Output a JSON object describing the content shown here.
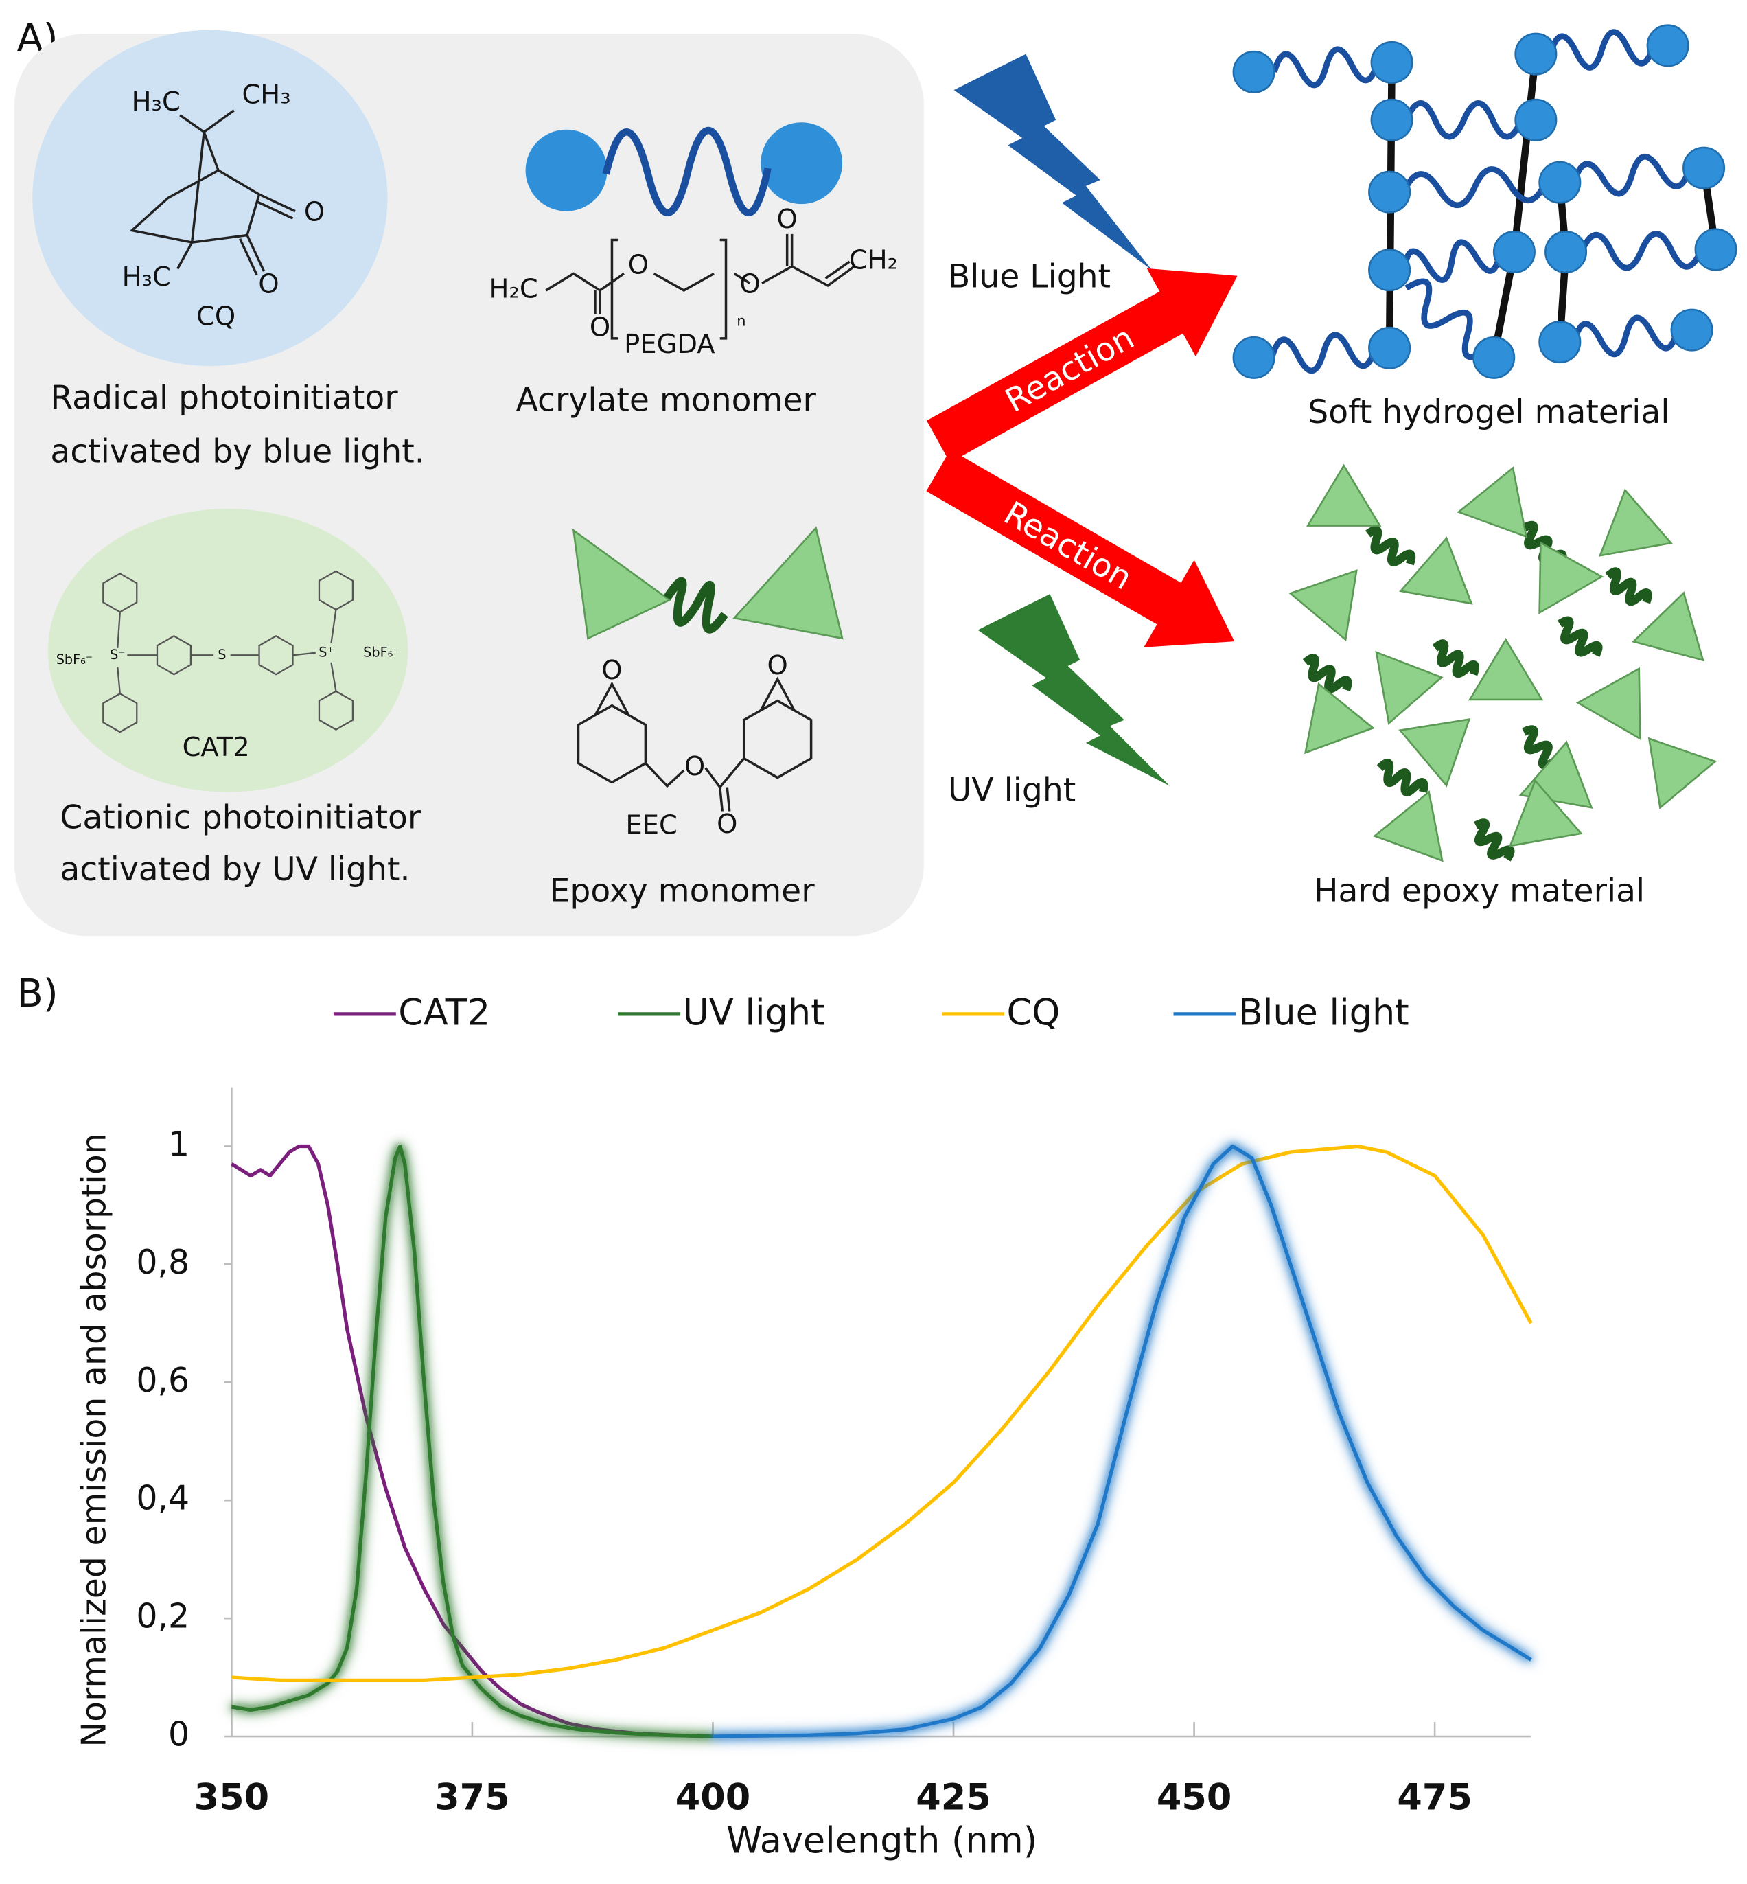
{
  "panel_a": {
    "label": "A)",
    "initiators": [
      {
        "name": "CQ",
        "caption": [
          "Radical photoinitiator",
          "activated by blue light."
        ],
        "atoms": [
          "H₃C",
          "CH₃",
          "O",
          "H₃C",
          "O"
        ]
      },
      {
        "name": "CAT2",
        "caption": [
          "Cationic photoinitiator",
          "activated by UV light."
        ],
        "atoms": [
          "SbF₆⁻",
          "S⁺",
          "S",
          "S⁺",
          "SbF₆⁻"
        ]
      }
    ],
    "monomers": [
      {
        "name": "PEGDA",
        "caption": "Acrylate monomer",
        "atoms": [
          "H₂C",
          "O",
          "O",
          "O",
          "O",
          "CH₂",
          "n"
        ]
      },
      {
        "name": "EEC",
        "caption": "Epoxy monomer",
        "atoms": [
          "O",
          "O",
          "O",
          "O"
        ]
      }
    ],
    "lights": [
      "Blue Light",
      "UV light"
    ],
    "arrows": [
      "Reaction",
      "Reaction"
    ],
    "products": [
      "Soft hydrogel material",
      "Hard epoxy material"
    ]
  },
  "chart_data": {
    "type": "line",
    "panel_label": "B)",
    "x_label": "Wavelength (nm)",
    "y_label": "Normalized emission and absorption",
    "xlim": [
      350,
      485
    ],
    "ylim": [
      0,
      1.1
    ],
    "xticks": [
      350,
      375,
      400,
      425,
      450,
      475
    ],
    "yticks": [
      0,
      {
        "value": 0.2,
        "label": "0,2"
      },
      {
        "value": 0.4,
        "label": "0,4"
      },
      {
        "value": 0.6,
        "label": "0,6"
      },
      {
        "value": 0.8,
        "label": "0,8"
      },
      1
    ],
    "legend": "top",
    "series": [
      {
        "name": "CAT2",
        "color": "#7b1f7d",
        "glow": false,
        "x": [
          350,
          351,
          352,
          353,
          354,
          355,
          356,
          357,
          358,
          359,
          360,
          361,
          362,
          364,
          366,
          368,
          370,
          372,
          374,
          376,
          378,
          380,
          382,
          385,
          388,
          392,
          396,
          400
        ],
        "values": [
          0.97,
          0.96,
          0.95,
          0.96,
          0.95,
          0.97,
          0.99,
          1,
          1,
          0.97,
          0.9,
          0.8,
          0.69,
          0.54,
          0.42,
          0.32,
          0.25,
          0.19,
          0.15,
          0.11,
          0.08,
          0.055,
          0.04,
          0.022,
          0.012,
          0.005,
          0.002,
          0
        ]
      },
      {
        "name": "UV light",
        "color": "#2f7a2f",
        "glow": true,
        "x": [
          350,
          352,
          354,
          356,
          358,
          360,
          361,
          362,
          363,
          364,
          365,
          366,
          367,
          367.5,
          368,
          369,
          370,
          371,
          372,
          373,
          374,
          376,
          378,
          380,
          383,
          386,
          390,
          395,
          400
        ],
        "values": [
          0.05,
          0.045,
          0.05,
          0.06,
          0.07,
          0.09,
          0.11,
          0.15,
          0.25,
          0.45,
          0.68,
          0.88,
          0.98,
          1,
          0.97,
          0.82,
          0.6,
          0.4,
          0.26,
          0.17,
          0.12,
          0.08,
          0.05,
          0.035,
          0.02,
          0.012,
          0.006,
          0.002,
          0
        ]
      },
      {
        "name": "CQ",
        "color": "#ffc000",
        "glow": false,
        "x": [
          350,
          355,
          360,
          365,
          370,
          375,
          380,
          385,
          390,
          395,
          400,
          405,
          410,
          415,
          420,
          425,
          430,
          435,
          440,
          445,
          450,
          455,
          460,
          467,
          470,
          475,
          480,
          485
        ],
        "values": [
          0.1,
          0.095,
          0.095,
          0.095,
          0.095,
          0.1,
          0.105,
          0.115,
          0.13,
          0.15,
          0.18,
          0.21,
          0.25,
          0.3,
          0.36,
          0.43,
          0.52,
          0.62,
          0.73,
          0.83,
          0.92,
          0.97,
          0.99,
          1,
          0.99,
          0.95,
          0.85,
          0.7
        ]
      },
      {
        "name": "Blue light",
        "color": "#1f78c8",
        "glow": true,
        "x": [
          400,
          410,
          415,
          420,
          425,
          428,
          431,
          434,
          437,
          440,
          443,
          446,
          449,
          452,
          454,
          456,
          458,
          460,
          462,
          465,
          468,
          471,
          474,
          477,
          480,
          483,
          485
        ],
        "values": [
          0,
          0.002,
          0.005,
          0.012,
          0.03,
          0.05,
          0.09,
          0.15,
          0.24,
          0.36,
          0.55,
          0.73,
          0.88,
          0.97,
          1,
          0.98,
          0.9,
          0.8,
          0.7,
          0.55,
          0.43,
          0.34,
          0.27,
          0.22,
          0.18,
          0.15,
          0.13
        ]
      }
    ]
  }
}
